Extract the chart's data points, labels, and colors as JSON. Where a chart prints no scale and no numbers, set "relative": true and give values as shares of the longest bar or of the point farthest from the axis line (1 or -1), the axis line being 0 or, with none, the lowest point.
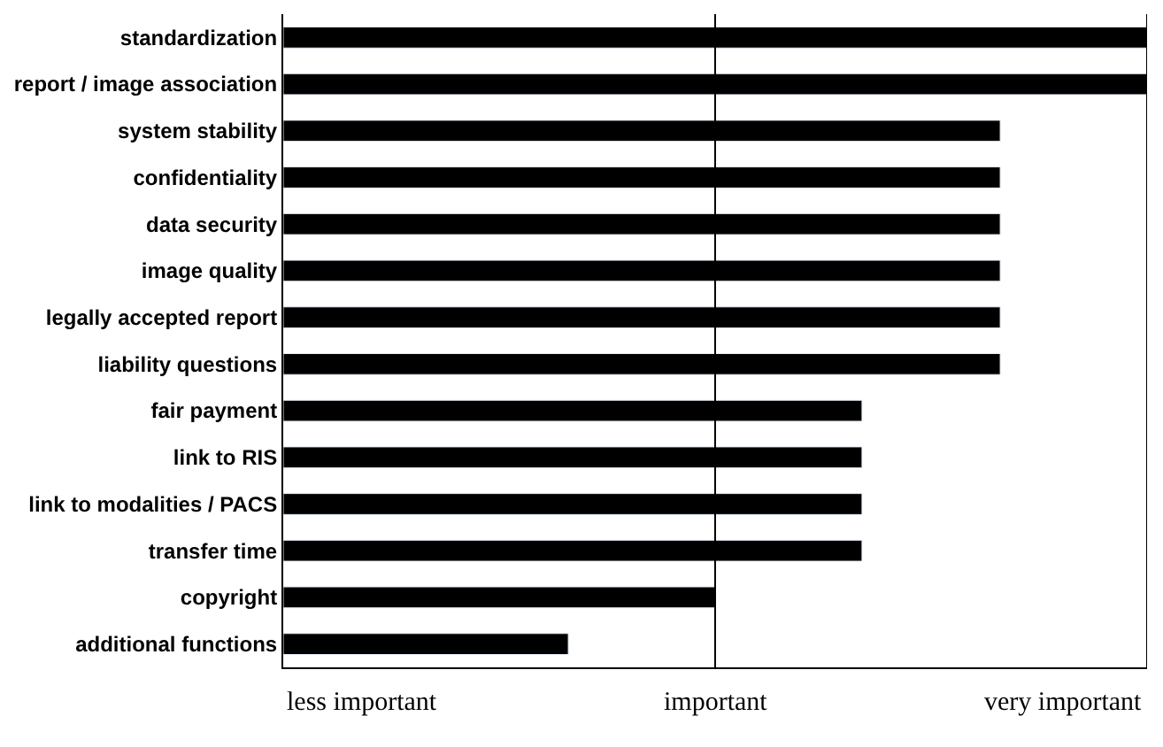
{
  "chart_data": {
    "type": "bar",
    "orientation": "horizontal",
    "relative": true,
    "categories": [
      "standardization",
      "report / image association",
      "system stability",
      "confidentiality",
      "data security",
      "image quality",
      "legally accepted report",
      "liability questions",
      "fair payment",
      "link to RIS",
      "link to modalities / PACS",
      "transfer time",
      "copyright",
      "additional functions"
    ],
    "values": [
      1,
      1,
      0.83,
      0.83,
      0.83,
      0.83,
      0.83,
      0.83,
      0.67,
      0.67,
      0.67,
      0.67,
      0.5,
      0.33
    ],
    "color": "#000000",
    "ref_lines": [
      {
        "axis": "x",
        "value": 0.5,
        "color": "#000000",
        "label": "important"
      },
      {
        "axis": "x",
        "value": 1,
        "color": "#000000",
        "label": "very important"
      }
    ],
    "annotations": [
      "less important"
    ]
  }
}
